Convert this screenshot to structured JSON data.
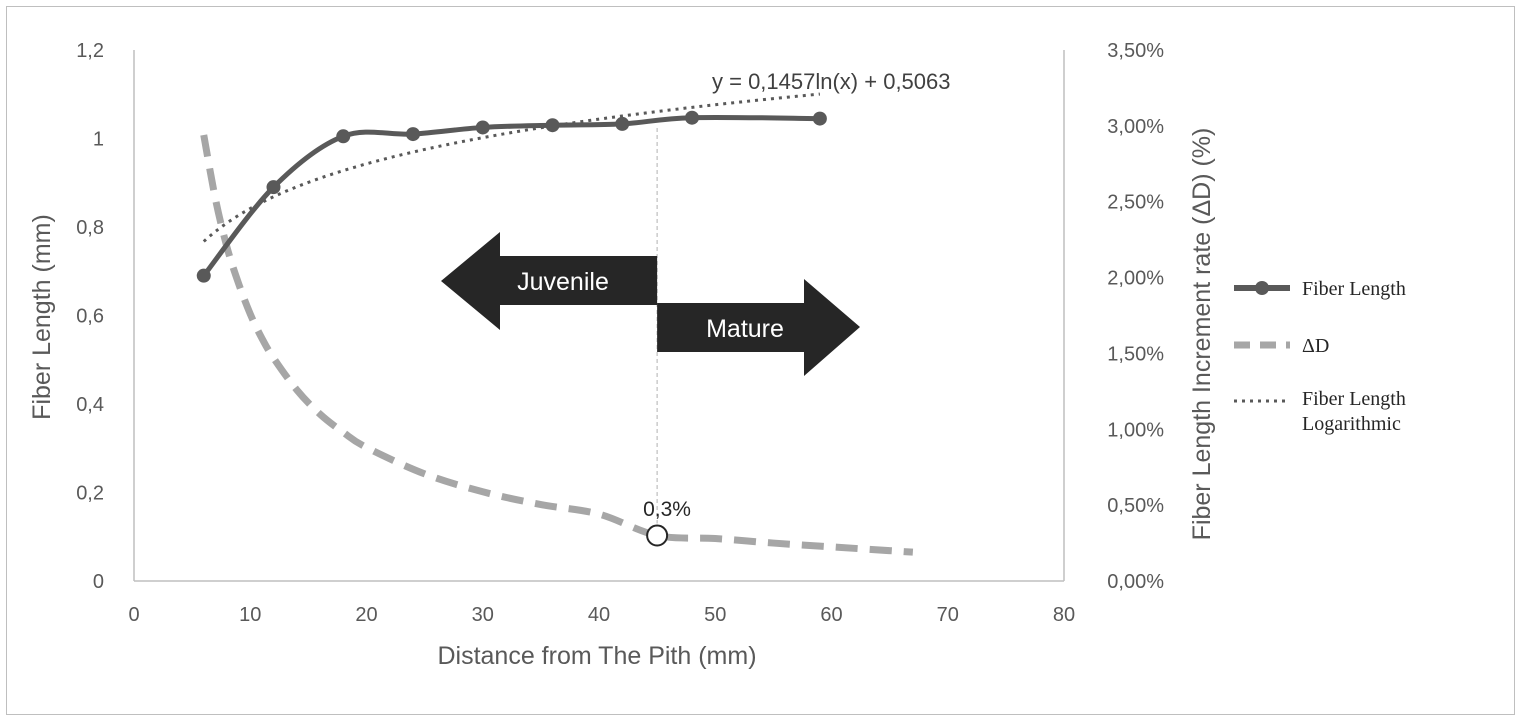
{
  "chart_data": {
    "type": "line",
    "title": "",
    "xlabel": "Distance from The Pith (mm)",
    "ylabel": "Fiber Length (mm)",
    "y2label": "Fiber Length Increment rate (ΔD) (%)",
    "xlim": [
      0,
      80
    ],
    "ylim": [
      0,
      1.2
    ],
    "y2lim": [
      0,
      3.5
    ],
    "x_ticks": [
      "0",
      "10",
      "20",
      "30",
      "40",
      "50",
      "60",
      "70",
      "80"
    ],
    "y_ticks": [
      "0",
      "0,2",
      "0,4",
      "0,6",
      "0,8",
      "1",
      "1,2"
    ],
    "y2_ticks": [
      "0,00%",
      "0,50%",
      "1,00%",
      "1,50%",
      "2,00%",
      "2,50%",
      "3,00%",
      "3,50%"
    ],
    "grid": false,
    "legend_position": "right",
    "series": [
      {
        "name": "Fiber Length",
        "axis": "left",
        "style": "solid-markers",
        "color": "#595959",
        "x": [
          6,
          12,
          18,
          24,
          30,
          36,
          42,
          48,
          59
        ],
        "y": [
          0.69,
          0.89,
          1.005,
          1.01,
          1.025,
          1.03,
          1.033,
          1.047,
          1.045
        ]
      },
      {
        "name": "ΔD",
        "axis": "right",
        "style": "dashed",
        "color": "#a6a6a6",
        "x": [
          6,
          7,
          8,
          9,
          10,
          11,
          12,
          14,
          16,
          18,
          20,
          25,
          30,
          35,
          40,
          45,
          50,
          55,
          60,
          67
        ],
        "y": [
          2.94,
          2.52,
          2.2,
          1.96,
          1.76,
          1.6,
          1.47,
          1.26,
          1.1,
          0.98,
          0.88,
          0.706,
          0.588,
          0.504,
          0.441,
          0.3,
          0.28,
          0.25,
          0.225,
          0.19
        ]
      },
      {
        "name": "Fiber Length Logarithmic",
        "axis": "left",
        "style": "dotted",
        "color": "#595959",
        "equation": "y = 0,1457ln(x) + 0,5063",
        "coef_a": 0.1457,
        "coef_b": 0.5063,
        "x_range": [
          6,
          59
        ]
      }
    ],
    "annotations": {
      "equation_label": "y = 0,1457ln(x) + 0,5063",
      "point_label": "0,3%",
      "point_x": 45,
      "point_y2": 0.3,
      "vertical_line_x": 45,
      "arrow_left_label": "Juvenile",
      "arrow_right_label": "Mature"
    }
  },
  "colors": {
    "axis": "#bfbfbf",
    "text": "#595959",
    "arrow": "#262626",
    "dashed_series": "#a6a6a6",
    "solid_series": "#595959"
  }
}
